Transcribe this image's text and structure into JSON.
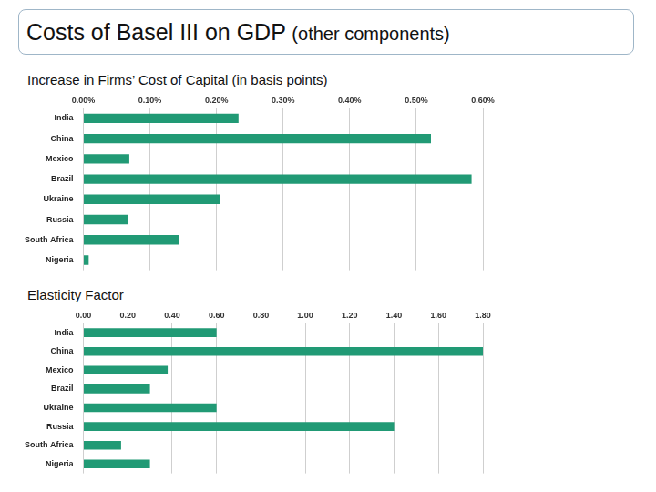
{
  "slide": {
    "title": "Costs of Basel III on GDP",
    "subtitle": "(other components)"
  },
  "chart_data": [
    {
      "type": "bar",
      "orientation": "horizontal",
      "title": "Increase in Firms’ Cost of Capital (in basis points)",
      "categories": [
        "India",
        "China",
        "Mexico",
        "Brazil",
        "Ukraine",
        "Russia",
        "South Africa",
        "Nigeria"
      ],
      "values": [
        0.233,
        0.522,
        0.069,
        0.583,
        0.205,
        0.067,
        0.143,
        0.008
      ],
      "color": "#219a75",
      "xlim": [
        0,
        0.6
      ],
      "xticks": [
        {
          "value": 0,
          "label": "0.00%"
        },
        {
          "value": 0.1,
          "label": "0.10%"
        },
        {
          "value": 0.2,
          "label": "0.20%"
        },
        {
          "value": 0.3,
          "label": "0.30%"
        },
        {
          "value": 0.4,
          "label": "0.40%"
        },
        {
          "value": 0.5,
          "label": "0.50%"
        },
        {
          "value": 0.6,
          "label": "0.60%"
        }
      ],
      "grid": true
    },
    {
      "type": "bar",
      "orientation": "horizontal",
      "title": "Elasticity Factor",
      "categories": [
        "India",
        "China",
        "Mexico",
        "Brazil",
        "Ukraine",
        "Russia",
        "South Africa",
        "Nigeria"
      ],
      "values": [
        0.6,
        1.8,
        0.38,
        0.3,
        0.6,
        1.4,
        0.17,
        0.3
      ],
      "color": "#219a75",
      "xlim": [
        0,
        1.8
      ],
      "xticks": [
        {
          "value": 0,
          "label": "0.00"
        },
        {
          "value": 0.2,
          "label": "0.20"
        },
        {
          "value": 0.4,
          "label": "0.40"
        },
        {
          "value": 0.6,
          "label": "0.60"
        },
        {
          "value": 0.8,
          "label": "0.80"
        },
        {
          "value": 1.0,
          "label": "1.00"
        },
        {
          "value": 1.2,
          "label": "1.20"
        },
        {
          "value": 1.4,
          "label": "1.40"
        },
        {
          "value": 1.6,
          "label": "1.60"
        },
        {
          "value": 1.8,
          "label": "1.80"
        }
      ],
      "grid": true
    }
  ]
}
